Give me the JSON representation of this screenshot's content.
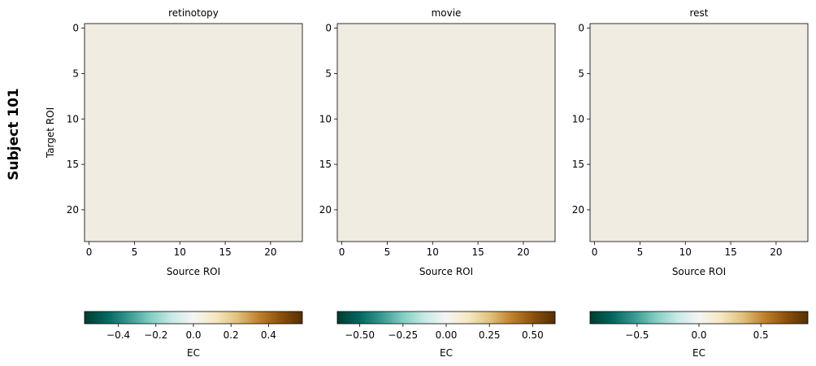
{
  "figure": {
    "row_label": "Subject 101",
    "colormap": "BrBG_r",
    "n_rois": 24,
    "cell_values_note": "ROI-by-ROI cell values are not legible in the screenshot; panels below carry only readable text and axis ranges."
  },
  "chart_data": [
    {
      "type": "heatmap",
      "title": "retinotopy",
      "xlabel": "Source ROI",
      "ylabel": "Target ROI",
      "xticks": [
        "0",
        "5",
        "10",
        "15",
        "20"
      ],
      "yticks": [
        "0",
        "5",
        "10",
        "15",
        "20"
      ],
      "n_rows": 24,
      "n_cols": 24,
      "colorbar": {
        "label": "EC",
        "range": [
          -0.58,
          0.58
        ],
        "ticks": [
          -0.4,
          -0.2,
          0.0,
          0.2,
          0.4
        ],
        "tick_labels": [
          "−0.4",
          "−0.2",
          "0.0",
          "0.2",
          "0.4"
        ]
      }
    },
    {
      "type": "heatmap",
      "title": "movie",
      "xlabel": "Source ROI",
      "ylabel": "",
      "xticks": [
        "0",
        "5",
        "10",
        "15",
        "20"
      ],
      "yticks": [
        "0",
        "5",
        "10",
        "15",
        "20"
      ],
      "n_rows": 24,
      "n_cols": 24,
      "colorbar": {
        "label": "EC",
        "range": [
          -0.63,
          0.63
        ],
        "ticks": [
          -0.5,
          -0.25,
          0.0,
          0.25,
          0.5
        ],
        "tick_labels": [
          "−0.50",
          "−0.25",
          "0.00",
          "0.25",
          "0.50"
        ]
      }
    },
    {
      "type": "heatmap",
      "title": "rest",
      "xlabel": "Source ROI",
      "ylabel": "",
      "xticks": [
        "0",
        "5",
        "10",
        "15",
        "20"
      ],
      "yticks": [
        "0",
        "5",
        "10",
        "15",
        "20"
      ],
      "n_rows": 24,
      "n_cols": 24,
      "colorbar": {
        "label": "EC",
        "range": [
          -0.88,
          0.88
        ],
        "ticks": [
          -0.5,
          0.0,
          0.5
        ],
        "tick_labels": [
          "−0.5",
          "0.0",
          "0.5"
        ]
      }
    }
  ]
}
